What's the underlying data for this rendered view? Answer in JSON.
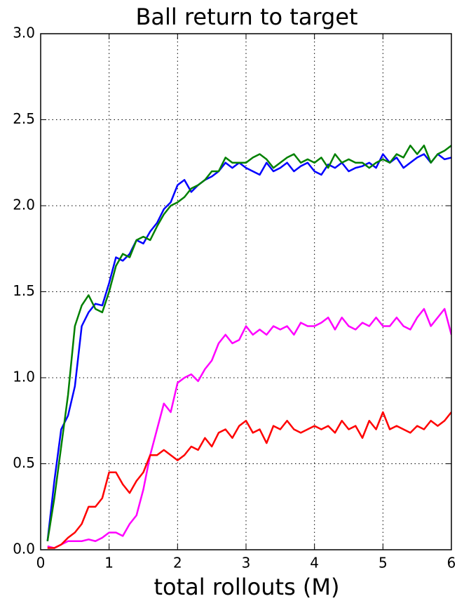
{
  "chart_data": {
    "type": "line",
    "title": "Ball return to target",
    "xlabel": "total rollouts (M)",
    "x": [
      0.1,
      0.2,
      0.3,
      0.4,
      0.5,
      0.6,
      0.7,
      0.8,
      0.9,
      1.0,
      1.1,
      1.2,
      1.3,
      1.4,
      1.5,
      1.6,
      1.7,
      1.8,
      1.9,
      2.0,
      2.1,
      2.2,
      2.3,
      2.4,
      2.5,
      2.6,
      2.7,
      2.8,
      2.9,
      3.0,
      3.1,
      3.2,
      3.3,
      3.4,
      3.5,
      3.6,
      3.7,
      3.8,
      3.9,
      4.0,
      4.1,
      4.2,
      4.3,
      4.4,
      4.5,
      4.6,
      4.7,
      4.8,
      4.9,
      5.0,
      5.1,
      5.2,
      5.3,
      5.4,
      5.5,
      5.6,
      5.7,
      5.8,
      5.9,
      6.0
    ],
    "series": [
      {
        "color": "#0000ff",
        "values": [
          0.05,
          0.4,
          0.7,
          0.78,
          0.95,
          1.3,
          1.38,
          1.43,
          1.42,
          1.55,
          1.7,
          1.68,
          1.72,
          1.8,
          1.78,
          1.85,
          1.9,
          1.98,
          2.02,
          2.12,
          2.15,
          2.08,
          2.12,
          2.15,
          2.17,
          2.2,
          2.25,
          2.22,
          2.25,
          2.22,
          2.2,
          2.18,
          2.25,
          2.2,
          2.22,
          2.25,
          2.2,
          2.23,
          2.25,
          2.2,
          2.18,
          2.24,
          2.22,
          2.25,
          2.2,
          2.22,
          2.23,
          2.25,
          2.22,
          2.3,
          2.25,
          2.28,
          2.22,
          2.25,
          2.28,
          2.3,
          2.25,
          2.3,
          2.27,
          2.28
        ]
      },
      {
        "color": "#008000",
        "values": [
          0.05,
          0.3,
          0.6,
          0.9,
          1.3,
          1.42,
          1.48,
          1.4,
          1.38,
          1.5,
          1.65,
          1.72,
          1.7,
          1.8,
          1.82,
          1.8,
          1.88,
          1.95,
          2.0,
          2.02,
          2.05,
          2.1,
          2.12,
          2.15,
          2.2,
          2.2,
          2.28,
          2.25,
          2.25,
          2.25,
          2.28,
          2.3,
          2.27,
          2.22,
          2.25,
          2.28,
          2.3,
          2.25,
          2.27,
          2.25,
          2.28,
          2.22,
          2.3,
          2.25,
          2.27,
          2.25,
          2.25,
          2.22,
          2.25,
          2.27,
          2.25,
          2.3,
          2.28,
          2.35,
          2.3,
          2.35,
          2.25,
          2.3,
          2.32,
          2.35
        ]
      },
      {
        "color": "#ff00ff",
        "values": [
          0.02,
          0.01,
          0.03,
          0.05,
          0.05,
          0.05,
          0.06,
          0.05,
          0.07,
          0.1,
          0.1,
          0.08,
          0.15,
          0.2,
          0.35,
          0.55,
          0.7,
          0.85,
          0.8,
          0.97,
          1.0,
          1.02,
          0.98,
          1.05,
          1.1,
          1.2,
          1.25,
          1.2,
          1.22,
          1.3,
          1.25,
          1.28,
          1.25,
          1.3,
          1.28,
          1.3,
          1.25,
          1.32,
          1.3,
          1.3,
          1.32,
          1.35,
          1.28,
          1.35,
          1.3,
          1.28,
          1.32,
          1.3,
          1.35,
          1.3,
          1.3,
          1.35,
          1.3,
          1.28,
          1.35,
          1.4,
          1.3,
          1.35,
          1.4,
          1.25
        ]
      },
      {
        "color": "#ff0000",
        "values": [
          0.01,
          0.01,
          0.03,
          0.07,
          0.1,
          0.15,
          0.25,
          0.25,
          0.3,
          0.45,
          0.45,
          0.38,
          0.33,
          0.4,
          0.45,
          0.55,
          0.55,
          0.58,
          0.55,
          0.52,
          0.55,
          0.6,
          0.58,
          0.65,
          0.6,
          0.68,
          0.7,
          0.65,
          0.72,
          0.75,
          0.68,
          0.7,
          0.62,
          0.72,
          0.7,
          0.75,
          0.7,
          0.68,
          0.7,
          0.72,
          0.7,
          0.72,
          0.68,
          0.75,
          0.7,
          0.72,
          0.65,
          0.75,
          0.7,
          0.8,
          0.7,
          0.72,
          0.7,
          0.68,
          0.72,
          0.7,
          0.75,
          0.72,
          0.75,
          0.8
        ]
      }
    ],
    "xlim": [
      0,
      6
    ],
    "xticks": [
      0,
      1,
      2,
      3,
      4,
      5,
      6
    ],
    "ylim": [
      0,
      3
    ],
    "yticks": [
      {
        "value": 0,
        "label": "0.0"
      },
      0.5,
      {
        "value": 1,
        "label": "1.0"
      },
      1.5,
      {
        "value": 2,
        "label": "2.0"
      },
      2.5,
      {
        "value": 3,
        "label": "3.0"
      }
    ],
    "grid": true
  }
}
